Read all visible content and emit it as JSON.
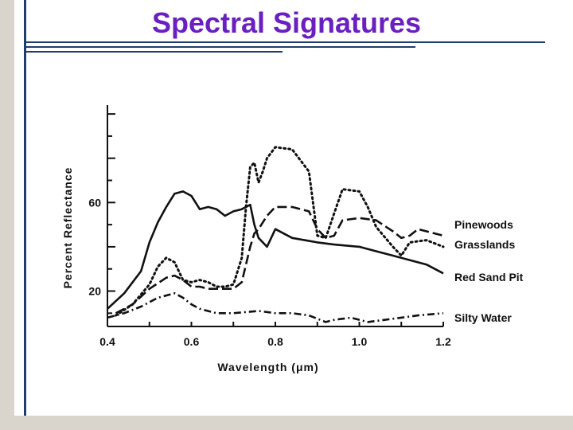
{
  "slide": {
    "title": "Spectral Signatures",
    "accent_color": "#6a1fc0",
    "rule_color": "#1f3e6b"
  },
  "chart_data": {
    "type": "line",
    "xlabel": "Wavelength (μm)",
    "ylabel": "Percent Reflectance",
    "xlim": [
      0.4,
      1.2
    ],
    "ylim": [
      4,
      104
    ],
    "x_ticks": [
      "0.4",
      "0.6",
      "0.8",
      "1.0",
      "1.2"
    ],
    "y_ticks": [
      "20",
      "60"
    ],
    "grid": false,
    "legend_placement": "right, next to line ends",
    "series": [
      {
        "name": "Pinewoods",
        "style": "long-dash",
        "x": [
          0.42,
          0.46,
          0.5,
          0.54,
          0.56,
          0.58,
          0.6,
          0.62,
          0.64,
          0.66,
          0.68,
          0.7,
          0.72,
          0.74,
          0.75,
          0.76,
          0.78,
          0.8,
          0.84,
          0.88,
          0.9,
          0.92,
          0.94,
          0.96,
          1.0,
          1.04,
          1.08,
          1.1,
          1.12,
          1.14,
          1.16,
          1.2
        ],
        "y": [
          10,
          14,
          21,
          26,
          27,
          25,
          22,
          22,
          21,
          21,
          21,
          21,
          24,
          40,
          46,
          48,
          54,
          58,
          58,
          56,
          48,
          44,
          45,
          52,
          53,
          52,
          47,
          44,
          45,
          48,
          47,
          45
        ]
      },
      {
        "name": "Grasslands",
        "style": "dotted",
        "x": [
          0.42,
          0.46,
          0.5,
          0.52,
          0.54,
          0.56,
          0.58,
          0.6,
          0.62,
          0.64,
          0.66,
          0.68,
          0.7,
          0.72,
          0.73,
          0.74,
          0.75,
          0.76,
          0.77,
          0.78,
          0.8,
          0.84,
          0.88,
          0.9,
          0.92,
          0.94,
          0.96,
          1.0,
          1.02,
          1.04,
          1.08,
          1.1,
          1.12,
          1.16,
          1.2
        ],
        "y": [
          9,
          14,
          23,
          31,
          35,
          33,
          25,
          24,
          25,
          24,
          22,
          22,
          23,
          35,
          58,
          76,
          78,
          69,
          74,
          80,
          85,
          84,
          74,
          45,
          44,
          55,
          66,
          65,
          58,
          49,
          40,
          36,
          42,
          43,
          40
        ]
      },
      {
        "name": "Red Sand Pit",
        "style": "solid",
        "x": [
          0.4,
          0.44,
          0.48,
          0.5,
          0.52,
          0.54,
          0.56,
          0.58,
          0.6,
          0.62,
          0.64,
          0.66,
          0.68,
          0.7,
          0.72,
          0.74,
          0.75,
          0.76,
          0.78,
          0.8,
          0.84,
          0.9,
          0.94,
          1.0,
          1.04,
          1.08,
          1.12,
          1.16,
          1.2
        ],
        "y": [
          12,
          19,
          29,
          42,
          51,
          58,
          64,
          65,
          63,
          57,
          58,
          57,
          54,
          56,
          57,
          59,
          50,
          44,
          40,
          48,
          44,
          42,
          41,
          40,
          38,
          36,
          34,
          32,
          28
        ]
      },
      {
        "name": "Silty Water",
        "style": "dash-dot",
        "x": [
          0.4,
          0.44,
          0.48,
          0.52,
          0.56,
          0.58,
          0.6,
          0.62,
          0.66,
          0.7,
          0.76,
          0.8,
          0.84,
          0.88,
          0.92,
          0.94,
          0.98,
          1.02,
          1.06,
          1.1,
          1.14,
          1.2
        ],
        "y": [
          8,
          10,
          13,
          17,
          19,
          17,
          14,
          12,
          10,
          10,
          11,
          10,
          10,
          9,
          6,
          7,
          8,
          6,
          7,
          8,
          9,
          10
        ]
      }
    ]
  }
}
